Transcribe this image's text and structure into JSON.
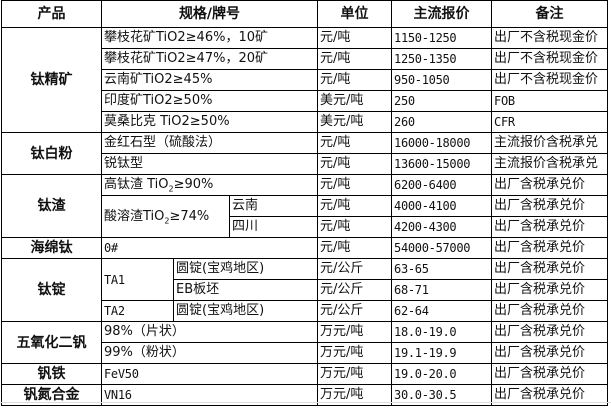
{
  "headers": {
    "product": "产品",
    "spec": "规格/牌号",
    "unit": "单位",
    "price": "主流报价",
    "note": "备注"
  },
  "products": {
    "p1": "钛精矿",
    "p2": "钛白粉",
    "p3": "钛渣",
    "p4": "海绵钛",
    "p5": "钛锭",
    "p6": "五氧化二钒",
    "p7": "钒铁",
    "p8": "钒氮合金"
  },
  "rows": [
    {
      "spec": "攀枝花矿TiO2≥46%，10矿",
      "unit": "元/吨",
      "price": "1150-1250",
      "note": "出厂不含税现金价"
    },
    {
      "spec": "攀枝花矿TiO2≥47%，20矿",
      "unit": "元/吨",
      "price": "1250-1350",
      "note": "出厂不含税现金价"
    },
    {
      "spec": "云南矿TiO2≥45%",
      "unit": "元/吨",
      "price": "950-1050",
      "note": "出厂不含税现金价"
    },
    {
      "spec": "印度矿TiO2≥50%",
      "unit": "美元/吨",
      "price": "250",
      "note": "FOB"
    },
    {
      "spec": "莫桑比克 TiO2≥50%",
      "unit": "美元/吨",
      "price": "260",
      "note": "CFR"
    },
    {
      "spec": "金红石型（硫酸法）",
      "unit": "元/吨",
      "price": "16000-18000",
      "note": "主流报价含税承兑"
    },
    {
      "spec": "锐钛型",
      "unit": "元/吨",
      "price": "13600-15000",
      "note": "主流报价含税承兑"
    },
    {
      "spec": "高钛渣 TiO",
      "spec_sub": "2",
      "spec_tail": "≥90%",
      "unit": "元/吨",
      "price": "6200-6400",
      "note": "出厂含税承兑价"
    },
    {
      "spec": "酸溶渣TiO",
      "spec_sub": "2",
      "spec_tail": "≥74%",
      "region": "云南",
      "unit": "元/吨",
      "price": "4000-4100",
      "note": "出厂含税承兑价"
    },
    {
      "region": "四川",
      "unit": "元/吨",
      "price": "4200-4300",
      "note": "出厂含税承兑价"
    },
    {
      "spec": "0#",
      "unit": "元/吨",
      "price": "54000-57000",
      "note": "出厂含税承兑价"
    },
    {
      "spec": "TA1",
      "form": "圆锭(宝鸡地区)",
      "unit": "元/公斤",
      "price": "63-65",
      "note": "出厂含税承兑价"
    },
    {
      "form": "EB板坯",
      "unit": "元/公斤",
      "price": "68-71",
      "note": "出厂含税承兑价"
    },
    {
      "spec": "TA2",
      "form": "圆锭(宝鸡地区)",
      "unit": "元/公斤",
      "price": "62-64",
      "note": "出厂含税承兑价"
    },
    {
      "spec": "98%（片状）",
      "unit": "万元/吨",
      "price": "18.0-19.0",
      "note": "出厂含税承兑价"
    },
    {
      "spec": "99%（粉状）",
      "unit": "万元/吨",
      "price": "19.1-19.9",
      "note": "出厂含税承兑价"
    },
    {
      "spec": "FeV50",
      "unit": "万元/吨",
      "price": "19.0-20.0",
      "note": "出厂含税承兑价"
    },
    {
      "spec": "VN16",
      "unit": "万元/吨",
      "price": "30.0-30.5",
      "note": "出厂含税承兑价"
    }
  ]
}
